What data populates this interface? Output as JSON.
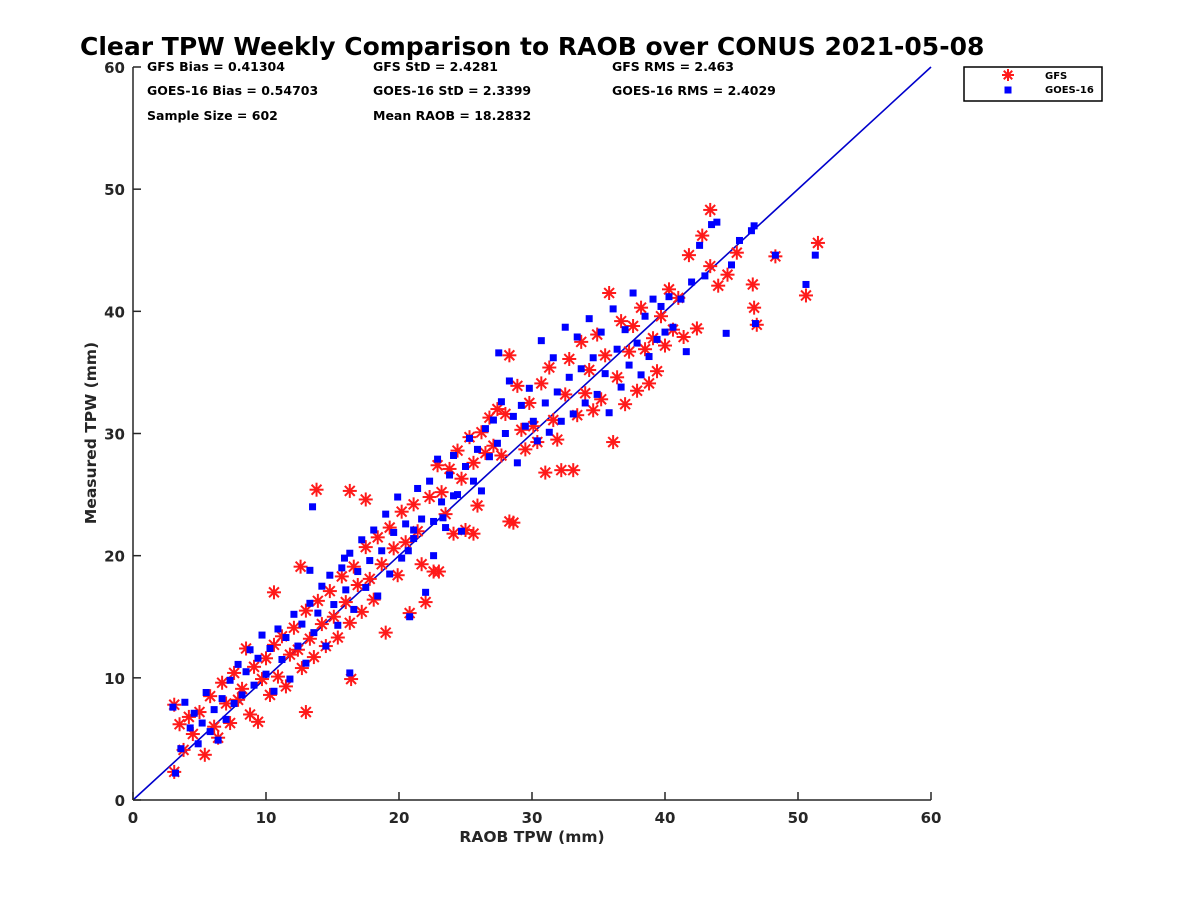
{
  "chart_data": {
    "type": "scatter",
    "title": "Clear TPW Weekly Comparison to RAOB over CONUS 2021-05-08",
    "xlabel": "RAOB TPW (mm)",
    "ylabel": "Measured TPW (mm)",
    "xlim": [
      0,
      60
    ],
    "ylim": [
      0,
      60
    ],
    "xticks": [
      "0",
      "10",
      "20",
      "30",
      "40",
      "50",
      "60"
    ],
    "yticks": [
      "0",
      "10",
      "20",
      "30",
      "40",
      "50",
      "60"
    ],
    "grid": false,
    "legend_position": "top-right, outside plot",
    "reference_line": {
      "type": "one-to-one",
      "color": "#0000cc"
    },
    "stats": [
      [
        "GFS Bias = 0.41304",
        "GFS StD = 2.4281",
        "GFS RMS = 2.463"
      ],
      [
        "GOES-16 Bias = 0.54703",
        "GOES-16 StD = 2.3399",
        "GOES-16 RMS = 2.4029"
      ],
      [
        "Sample Size = 602",
        "Mean RAOB = 18.2832",
        ""
      ]
    ],
    "series": [
      {
        "name": "GFS",
        "marker": "asterisk",
        "color": "#ff1a1a",
        "points": [
          [
            3.1,
            2.3
          ],
          [
            3.1,
            7.8
          ],
          [
            3.5,
            6.2
          ],
          [
            3.8,
            4.1
          ],
          [
            4.2,
            6.8
          ],
          [
            4.5,
            5.4
          ],
          [
            5.0,
            7.2
          ],
          [
            5.4,
            3.7
          ],
          [
            5.8,
            8.5
          ],
          [
            6.1,
            6.0
          ],
          [
            6.4,
            5.1
          ],
          [
            6.7,
            9.6
          ],
          [
            7.0,
            7.9
          ],
          [
            7.3,
            6.3
          ],
          [
            7.6,
            10.4
          ],
          [
            7.9,
            8.2
          ],
          [
            8.2,
            9.1
          ],
          [
            8.5,
            12.4
          ],
          [
            8.8,
            7.0
          ],
          [
            9.1,
            10.9
          ],
          [
            9.4,
            6.4
          ],
          [
            9.7,
            9.9
          ],
          [
            10.0,
            11.6
          ],
          [
            10.3,
            8.6
          ],
          [
            10.6,
            12.7
          ],
          [
            10.9,
            10.1
          ],
          [
            11.2,
            13.4
          ],
          [
            11.5,
            9.3
          ],
          [
            11.8,
            11.9
          ],
          [
            12.1,
            14.1
          ],
          [
            12.4,
            12.3
          ],
          [
            12.7,
            10.8
          ],
          [
            13.0,
            15.5
          ],
          [
            13.3,
            13.2
          ],
          [
            13.6,
            11.7
          ],
          [
            13.9,
            16.3
          ],
          [
            14.2,
            14.4
          ],
          [
            14.5,
            12.6
          ],
          [
            14.8,
            17.1
          ],
          [
            15.1,
            15.0
          ],
          [
            15.4,
            13.3
          ],
          [
            15.7,
            18.3
          ],
          [
            16.0,
            16.2
          ],
          [
            16.3,
            14.5
          ],
          [
            16.6,
            19.1
          ],
          [
            16.9,
            17.6
          ],
          [
            17.2,
            15.4
          ],
          [
            17.5,
            20.7
          ],
          [
            17.8,
            18.1
          ],
          [
            18.1,
            16.4
          ],
          [
            18.4,
            21.5
          ],
          [
            18.7,
            19.3
          ],
          [
            19.0,
            13.7
          ],
          [
            19.3,
            22.3
          ],
          [
            19.6,
            20.6
          ],
          [
            19.9,
            18.4
          ],
          [
            20.2,
            23.6
          ],
          [
            20.5,
            21.1
          ],
          [
            20.8,
            15.3
          ],
          [
            21.1,
            24.2
          ],
          [
            21.4,
            22.0
          ],
          [
            21.7,
            19.3
          ],
          [
            22.0,
            16.2
          ],
          [
            22.3,
            24.8
          ],
          [
            22.6,
            18.7
          ],
          [
            22.9,
            27.4
          ],
          [
            23.2,
            25.2
          ],
          [
            23.5,
            23.4
          ],
          [
            23.8,
            27.1
          ],
          [
            24.1,
            21.8
          ],
          [
            24.4,
            28.6
          ],
          [
            24.7,
            26.3
          ],
          [
            25.0,
            22.1
          ],
          [
            25.3,
            29.7
          ],
          [
            25.6,
            27.6
          ],
          [
            25.9,
            24.1
          ],
          [
            26.2,
            30.1
          ],
          [
            26.5,
            28.4
          ],
          [
            26.8,
            31.3
          ],
          [
            27.1,
            29.0
          ],
          [
            27.4,
            32.0
          ],
          [
            27.7,
            28.2
          ],
          [
            28.0,
            31.6
          ],
          [
            28.3,
            36.4
          ],
          [
            28.6,
            22.7
          ],
          [
            28.9,
            33.9
          ],
          [
            29.2,
            30.3
          ],
          [
            29.5,
            28.7
          ],
          [
            29.8,
            32.5
          ],
          [
            30.1,
            30.6
          ],
          [
            30.4,
            29.3
          ],
          [
            30.7,
            34.1
          ],
          [
            31.0,
            26.8
          ],
          [
            31.3,
            35.4
          ],
          [
            31.6,
            31.1
          ],
          [
            31.9,
            29.5
          ],
          [
            32.2,
            27.0
          ],
          [
            32.5,
            33.2
          ],
          [
            32.8,
            36.1
          ],
          [
            33.1,
            27.0
          ],
          [
            33.4,
            31.5
          ],
          [
            33.7,
            37.5
          ],
          [
            34.0,
            33.3
          ],
          [
            34.3,
            35.2
          ],
          [
            34.6,
            31.9
          ],
          [
            34.9,
            38.1
          ],
          [
            35.2,
            32.8
          ],
          [
            35.5,
            36.4
          ],
          [
            35.8,
            41.5
          ],
          [
            36.1,
            29.3
          ],
          [
            36.4,
            34.6
          ],
          [
            36.7,
            39.2
          ],
          [
            37.0,
            32.4
          ],
          [
            37.3,
            36.7
          ],
          [
            37.6,
            38.8
          ],
          [
            37.9,
            33.5
          ],
          [
            38.2,
            40.3
          ],
          [
            38.5,
            36.9
          ],
          [
            38.8,
            34.1
          ],
          [
            39.1,
            37.8
          ],
          [
            39.4,
            35.1
          ],
          [
            39.7,
            39.6
          ],
          [
            40.0,
            37.2
          ],
          [
            40.3,
            41.8
          ],
          [
            40.6,
            38.5
          ],
          [
            41.0,
            41.1
          ],
          [
            41.4,
            37.9
          ],
          [
            41.8,
            44.6
          ],
          [
            42.4,
            38.6
          ],
          [
            42.8,
            46.2
          ],
          [
            43.4,
            48.3
          ],
          [
            43.4,
            43.7
          ],
          [
            44.0,
            42.1
          ],
          [
            44.7,
            43.0
          ],
          [
            45.4,
            44.8
          ],
          [
            46.6,
            42.2
          ],
          [
            46.7,
            40.3
          ],
          [
            46.9,
            38.9
          ],
          [
            48.3,
            44.5
          ],
          [
            50.6,
            41.3
          ],
          [
            51.5,
            45.6
          ],
          [
            13.8,
            25.4
          ],
          [
            16.3,
            25.3
          ],
          [
            17.5,
            24.6
          ],
          [
            13.0,
            7.2
          ],
          [
            16.4,
            9.9
          ],
          [
            28.3,
            22.8
          ],
          [
            23.0,
            18.7
          ],
          [
            25.6,
            21.8
          ],
          [
            12.6,
            19.1
          ],
          [
            10.6,
            17.0
          ]
        ]
      },
      {
        "name": "GOES-16",
        "marker": "square",
        "color": "#0000ff",
        "points": [
          [
            3.0,
            7.6
          ],
          [
            3.2,
            2.2
          ],
          [
            3.6,
            4.2
          ],
          [
            3.9,
            8.0
          ],
          [
            4.3,
            5.9
          ],
          [
            4.6,
            7.1
          ],
          [
            4.9,
            4.6
          ],
          [
            5.2,
            6.3
          ],
          [
            5.5,
            8.8
          ],
          [
            5.8,
            5.6
          ],
          [
            6.1,
            7.4
          ],
          [
            6.4,
            4.9
          ],
          [
            6.7,
            8.3
          ],
          [
            7.0,
            6.6
          ],
          [
            7.3,
            9.8
          ],
          [
            7.6,
            7.9
          ],
          [
            7.9,
            11.1
          ],
          [
            8.2,
            8.6
          ],
          [
            8.5,
            10.5
          ],
          [
            8.8,
            12.3
          ],
          [
            9.1,
            9.4
          ],
          [
            9.4,
            11.6
          ],
          [
            9.7,
            13.5
          ],
          [
            10.0,
            10.3
          ],
          [
            10.3,
            12.4
          ],
          [
            10.6,
            8.9
          ],
          [
            10.9,
            14.0
          ],
          [
            11.2,
            11.5
          ],
          [
            11.5,
            13.3
          ],
          [
            11.8,
            9.9
          ],
          [
            12.1,
            15.2
          ],
          [
            12.4,
            12.6
          ],
          [
            12.7,
            14.4
          ],
          [
            13.0,
            11.2
          ],
          [
            13.3,
            16.1
          ],
          [
            13.6,
            13.7
          ],
          [
            13.9,
            15.3
          ],
          [
            14.2,
            17.5
          ],
          [
            14.5,
            12.6
          ],
          [
            14.8,
            18.4
          ],
          [
            15.1,
            16.0
          ],
          [
            15.4,
            14.3
          ],
          [
            15.7,
            19.0
          ],
          [
            16.0,
            17.2
          ],
          [
            16.3,
            20.2
          ],
          [
            16.6,
            15.6
          ],
          [
            16.9,
            18.7
          ],
          [
            17.2,
            21.3
          ],
          [
            17.5,
            17.4
          ],
          [
            17.8,
            19.6
          ],
          [
            18.1,
            22.1
          ],
          [
            18.4,
            16.7
          ],
          [
            18.7,
            20.4
          ],
          [
            19.0,
            23.4
          ],
          [
            19.3,
            18.5
          ],
          [
            19.6,
            21.9
          ],
          [
            19.9,
            24.8
          ],
          [
            20.2,
            19.8
          ],
          [
            20.5,
            22.6
          ],
          [
            20.8,
            15.0
          ],
          [
            21.1,
            21.4
          ],
          [
            21.4,
            25.5
          ],
          [
            21.7,
            23.0
          ],
          [
            22.0,
            17.0
          ],
          [
            22.3,
            26.1
          ],
          [
            22.6,
            22.8
          ],
          [
            22.9,
            27.9
          ],
          [
            23.2,
            24.4
          ],
          [
            23.5,
            22.3
          ],
          [
            23.8,
            26.6
          ],
          [
            24.1,
            28.2
          ],
          [
            24.4,
            25.0
          ],
          [
            24.7,
            22.0
          ],
          [
            25.0,
            27.3
          ],
          [
            25.3,
            29.6
          ],
          [
            25.6,
            26.1
          ],
          [
            25.9,
            28.7
          ],
          [
            26.2,
            25.3
          ],
          [
            26.5,
            30.4
          ],
          [
            26.8,
            28.1
          ],
          [
            27.1,
            31.1
          ],
          [
            27.4,
            29.2
          ],
          [
            27.7,
            32.6
          ],
          [
            28.0,
            30.0
          ],
          [
            28.3,
            34.3
          ],
          [
            28.6,
            31.4
          ],
          [
            28.9,
            27.6
          ],
          [
            29.2,
            32.3
          ],
          [
            29.5,
            30.6
          ],
          [
            29.8,
            33.7
          ],
          [
            30.1,
            31.0
          ],
          [
            30.4,
            29.4
          ],
          [
            30.7,
            37.6
          ],
          [
            31.0,
            32.5
          ],
          [
            31.3,
            30.1
          ],
          [
            31.6,
            36.2
          ],
          [
            31.9,
            33.4
          ],
          [
            32.2,
            31.0
          ],
          [
            32.5,
            38.7
          ],
          [
            32.8,
            34.6
          ],
          [
            33.1,
            31.6
          ],
          [
            33.4,
            37.9
          ],
          [
            33.7,
            35.3
          ],
          [
            34.0,
            32.5
          ],
          [
            34.3,
            39.4
          ],
          [
            34.6,
            36.2
          ],
          [
            34.9,
            33.2
          ],
          [
            35.2,
            38.3
          ],
          [
            35.5,
            34.9
          ],
          [
            35.8,
            31.7
          ],
          [
            36.1,
            40.2
          ],
          [
            36.4,
            36.9
          ],
          [
            36.7,
            33.8
          ],
          [
            37.0,
            38.5
          ],
          [
            37.3,
            35.6
          ],
          [
            37.6,
            41.5
          ],
          [
            37.9,
            37.4
          ],
          [
            38.2,
            34.8
          ],
          [
            38.5,
            39.6
          ],
          [
            38.8,
            36.3
          ],
          [
            39.1,
            41.0
          ],
          [
            39.4,
            37.7
          ],
          [
            39.7,
            40.4
          ],
          [
            40.0,
            38.3
          ],
          [
            40.3,
            41.2
          ],
          [
            40.6,
            38.7
          ],
          [
            41.2,
            41.0
          ],
          [
            41.6,
            36.7
          ],
          [
            42.0,
            42.4
          ],
          [
            42.6,
            45.4
          ],
          [
            43.0,
            42.9
          ],
          [
            43.5,
            47.1
          ],
          [
            43.9,
            47.3
          ],
          [
            44.6,
            38.2
          ],
          [
            45.0,
            43.8
          ],
          [
            45.6,
            45.8
          ],
          [
            46.5,
            46.6
          ],
          [
            46.7,
            47.0
          ],
          [
            46.8,
            39.0
          ],
          [
            48.3,
            44.6
          ],
          [
            50.6,
            42.2
          ],
          [
            51.3,
            44.6
          ],
          [
            13.5,
            24.0
          ],
          [
            16.3,
            10.4
          ],
          [
            27.5,
            36.6
          ],
          [
            24.1,
            24.9
          ],
          [
            21.1,
            22.1
          ],
          [
            20.7,
            20.4
          ],
          [
            13.3,
            18.8
          ],
          [
            15.9,
            19.8
          ],
          [
            22.6,
            20.0
          ],
          [
            23.3,
            23.1
          ]
        ]
      }
    ]
  }
}
